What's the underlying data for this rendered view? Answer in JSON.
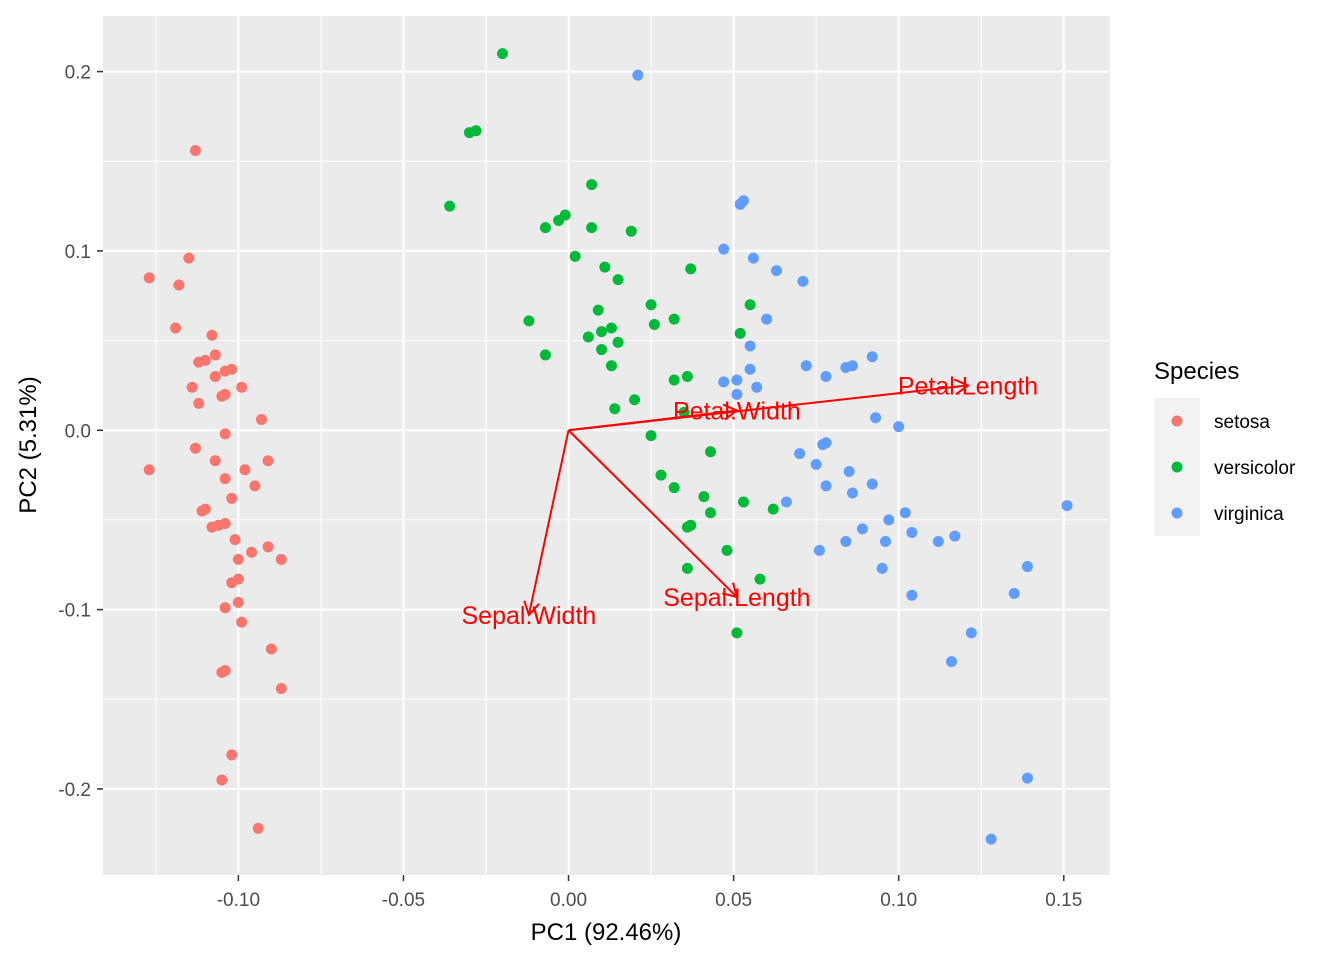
{
  "chart_data": {
    "type": "scatter",
    "xlabel": "PC1 (92.46%)",
    "ylabel": "PC2 (5.31%)",
    "xlim": [
      -0.141,
      0.164
    ],
    "ylim": [
      -0.248,
      0.231
    ],
    "x_ticks": [
      -0.1,
      -0.05,
      0.0,
      0.05,
      0.1,
      0.15
    ],
    "x_tick_labels": [
      "-0.10",
      "-0.05",
      "0.00",
      "0.05",
      "0.10",
      "0.15"
    ],
    "y_ticks": [
      -0.2,
      -0.1,
      0.0,
      0.1,
      0.2
    ],
    "y_tick_labels": [
      "-0.2",
      "-0.1",
      "0.0",
      "0.1",
      "0.2"
    ],
    "grid": true,
    "legend": {
      "title": "Species",
      "position": "right"
    },
    "series": [
      {
        "name": "setosa",
        "color": "#F8766D",
        "points": [
          [
            -0.113,
            0.156
          ],
          [
            -0.115,
            0.096
          ],
          [
            -0.127,
            0.085
          ],
          [
            -0.118,
            0.081
          ],
          [
            -0.119,
            0.057
          ],
          [
            -0.108,
            0.053
          ],
          [
            -0.107,
            0.042
          ],
          [
            -0.11,
            0.039
          ],
          [
            -0.112,
            0.038
          ],
          [
            -0.102,
            0.034
          ],
          [
            -0.104,
            0.033
          ],
          [
            -0.107,
            0.03
          ],
          [
            -0.114,
            0.024
          ],
          [
            -0.099,
            0.024
          ],
          [
            -0.104,
            0.02
          ],
          [
            -0.105,
            0.019
          ],
          [
            -0.112,
            0.015
          ],
          [
            -0.093,
            0.006
          ],
          [
            -0.104,
            -0.002
          ],
          [
            -0.113,
            -0.01
          ],
          [
            -0.107,
            -0.017
          ],
          [
            -0.091,
            -0.017
          ],
          [
            -0.127,
            -0.022
          ],
          [
            -0.098,
            -0.022
          ],
          [
            -0.104,
            -0.027
          ],
          [
            -0.095,
            -0.031
          ],
          [
            -0.102,
            -0.038
          ],
          [
            -0.11,
            -0.044
          ],
          [
            -0.111,
            -0.045
          ],
          [
            -0.104,
            -0.052
          ],
          [
            -0.106,
            -0.053
          ],
          [
            -0.108,
            -0.054
          ],
          [
            -0.101,
            -0.061
          ],
          [
            -0.091,
            -0.065
          ],
          [
            -0.096,
            -0.068
          ],
          [
            -0.087,
            -0.072
          ],
          [
            -0.1,
            -0.072
          ],
          [
            -0.1,
            -0.083
          ],
          [
            -0.102,
            -0.085
          ],
          [
            -0.1,
            -0.096
          ],
          [
            -0.104,
            -0.099
          ],
          [
            -0.099,
            -0.107
          ],
          [
            -0.09,
            -0.122
          ],
          [
            -0.104,
            -0.134
          ],
          [
            -0.105,
            -0.135
          ],
          [
            -0.087,
            -0.144
          ],
          [
            -0.102,
            -0.181
          ],
          [
            -0.105,
            -0.195
          ],
          [
            -0.094,
            -0.222
          ]
        ]
      },
      {
        "name": "versicolor",
        "color": "#00BA38",
        "points": [
          [
            -0.02,
            0.21
          ],
          [
            -0.028,
            0.167
          ],
          [
            -0.03,
            0.166
          ],
          [
            0.007,
            0.137
          ],
          [
            -0.036,
            0.125
          ],
          [
            -0.001,
            0.12
          ],
          [
            -0.003,
            0.117
          ],
          [
            -0.007,
            0.113
          ],
          [
            0.007,
            0.113
          ],
          [
            0.019,
            0.111
          ],
          [
            0.002,
            0.097
          ],
          [
            0.011,
            0.091
          ],
          [
            0.037,
            0.09
          ],
          [
            0.015,
            0.084
          ],
          [
            0.025,
            0.07
          ],
          [
            0.055,
            0.07
          ],
          [
            0.009,
            0.067
          ],
          [
            0.026,
            0.059
          ],
          [
            0.032,
            0.062
          ],
          [
            -0.012,
            0.061
          ],
          [
            0.01,
            0.055
          ],
          [
            0.013,
            0.057
          ],
          [
            0.052,
            0.054
          ],
          [
            0.006,
            0.052
          ],
          [
            0.015,
            0.049
          ],
          [
            0.01,
            0.045
          ],
          [
            -0.007,
            0.042
          ],
          [
            0.013,
            0.036
          ],
          [
            0.032,
            0.028
          ],
          [
            0.036,
            0.03
          ],
          [
            0.02,
            0.017
          ],
          [
            0.014,
            0.012
          ],
          [
            0.035,
            0.01
          ],
          [
            0.025,
            -0.003
          ],
          [
            0.043,
            -0.012
          ],
          [
            0.028,
            -0.025
          ],
          [
            0.032,
            -0.032
          ],
          [
            0.041,
            -0.037
          ],
          [
            0.053,
            -0.04
          ],
          [
            0.043,
            -0.046
          ],
          [
            0.062,
            -0.044
          ],
          [
            0.037,
            -0.053
          ],
          [
            0.036,
            -0.054
          ],
          [
            0.048,
            -0.067
          ],
          [
            0.036,
            -0.077
          ],
          [
            0.058,
            -0.083
          ],
          [
            0.051,
            -0.113
          ]
        ]
      },
      {
        "name": "virginica",
        "color": "#619CFF",
        "points": [
          [
            0.021,
            0.198
          ],
          [
            0.053,
            0.128
          ],
          [
            0.052,
            0.126
          ],
          [
            0.047,
            0.101
          ],
          [
            0.056,
            0.096
          ],
          [
            0.063,
            0.089
          ],
          [
            0.071,
            0.083
          ],
          [
            0.06,
            0.062
          ],
          [
            0.055,
            0.047
          ],
          [
            0.092,
            0.041
          ],
          [
            0.072,
            0.036
          ],
          [
            0.086,
            0.036
          ],
          [
            0.084,
            0.035
          ],
          [
            0.055,
            0.034
          ],
          [
            0.078,
            0.03
          ],
          [
            0.047,
            0.027
          ],
          [
            0.051,
            0.028
          ],
          [
            0.057,
            0.024
          ],
          [
            0.051,
            0.02
          ],
          [
            0.093,
            0.007
          ],
          [
            0.1,
            0.002
          ],
          [
            0.078,
            -0.007
          ],
          [
            0.077,
            -0.008
          ],
          [
            0.07,
            -0.013
          ],
          [
            0.075,
            -0.019
          ],
          [
            0.085,
            -0.023
          ],
          [
            0.092,
            -0.03
          ],
          [
            0.078,
            -0.031
          ],
          [
            0.086,
            -0.035
          ],
          [
            0.066,
            -0.04
          ],
          [
            0.102,
            -0.046
          ],
          [
            0.151,
            -0.042
          ],
          [
            0.097,
            -0.05
          ],
          [
            0.089,
            -0.055
          ],
          [
            0.104,
            -0.057
          ],
          [
            0.117,
            -0.059
          ],
          [
            0.112,
            -0.062
          ],
          [
            0.084,
            -0.062
          ],
          [
            0.096,
            -0.062
          ],
          [
            0.076,
            -0.067
          ],
          [
            0.095,
            -0.077
          ],
          [
            0.139,
            -0.076
          ],
          [
            0.135,
            -0.091
          ],
          [
            0.104,
            -0.092
          ],
          [
            0.122,
            -0.113
          ],
          [
            0.116,
            -0.129
          ],
          [
            0.139,
            -0.194
          ],
          [
            0.128,
            -0.228
          ]
        ]
      }
    ],
    "loadings": {
      "color": "#FF0000",
      "arrows": [
        {
          "name": "Petal.Length",
          "x": 0.121,
          "y": 0.025
        },
        {
          "name": "Petal.Width",
          "x": 0.051,
          "y": 0.011
        },
        {
          "name": "Sepal.Length",
          "x": 0.051,
          "y": -0.093
        },
        {
          "name": "Sepal.Width",
          "x": -0.012,
          "y": -0.103
        }
      ]
    }
  }
}
